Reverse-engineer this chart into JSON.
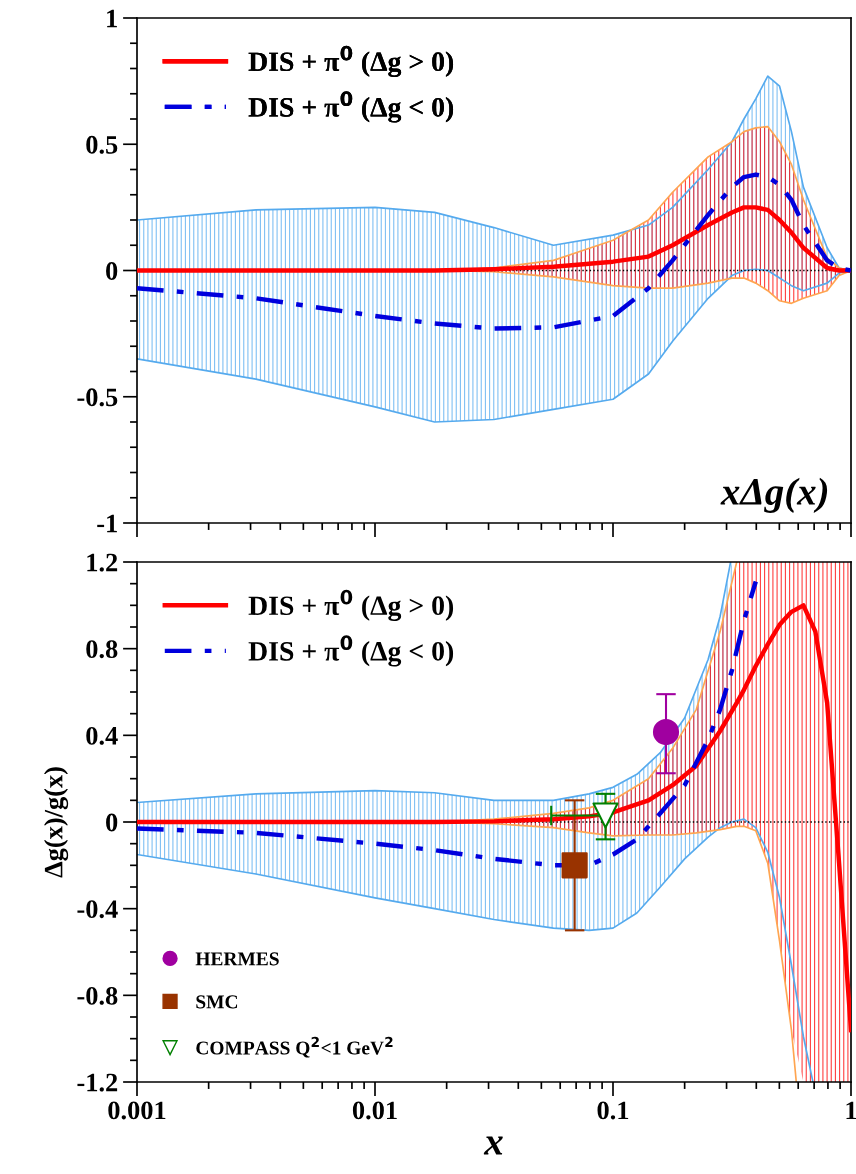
{
  "chart_data": [
    {
      "type": "line",
      "annotations": [
        "xΔg(x)"
      ],
      "xlim": [
        0.001,
        1
      ],
      "xticks": [
        0.001,
        0.01,
        0.1,
        1
      ],
      "ylim": [
        -1,
        1
      ],
      "yticks": [
        -1,
        -0.5,
        0,
        0.5,
        1
      ],
      "log": "x",
      "tick_labels": "y",
      "legend": "top left",
      "grid": false,
      "ref_lines": [
        {
          "axis": "y",
          "value": 0,
          "color": "#000000",
          "line_style": "dotted"
        }
      ],
      "series": [
        {
          "color": "#55aaee",
          "line_style": "solid",
          "x": [
            0.001,
            0.00316,
            0.01,
            0.0178,
            0.0316,
            0.0562,
            0.1,
            0.141,
            0.178,
            0.251,
            0.316,
            0.355,
            0.398,
            0.447,
            0.501,
            0.562,
            0.631,
            0.794,
            0.891,
            1
          ],
          "values": [
            0.2,
            0.24,
            0.25,
            0.23,
            0.17,
            0.1,
            0.14,
            0.18,
            0.25,
            0.4,
            0.51,
            0.6,
            0.68,
            0.77,
            0.73,
            0.55,
            0.33,
            0.09,
            0.01,
            0
          ]
        },
        {
          "color": "#55aaee",
          "line_style": "solid",
          "x": [
            0.001,
            0.00316,
            0.01,
            0.0178,
            0.0316,
            0.0562,
            0.1,
            0.141,
            0.178,
            0.251,
            0.316,
            0.355,
            0.398,
            0.447,
            0.501,
            0.562,
            0.631,
            0.794,
            0.891,
            1
          ],
          "values": [
            -0.35,
            -0.43,
            -0.54,
            -0.6,
            -0.59,
            -0.55,
            -0.51,
            -0.41,
            -0.28,
            -0.11,
            -0.02,
            0,
            0.005,
            0,
            -0.03,
            -0.06,
            -0.08,
            -0.05,
            -0.01,
            0
          ]
        },
        {
          "color": "#ffa550",
          "line_style": "solid",
          "x": [
            0.0178,
            0.0316,
            0.0562,
            0.1,
            0.141,
            0.178,
            0.251,
            0.316,
            0.355,
            0.398,
            0.447,
            0.501,
            0.562,
            0.631,
            0.794,
            0.891,
            1
          ],
          "values": [
            0,
            0.01,
            0.04,
            0.12,
            0.2,
            0.31,
            0.45,
            0.51,
            0.55,
            0.565,
            0.57,
            0.51,
            0.42,
            0.28,
            0.05,
            0.01,
            0
          ]
        },
        {
          "color": "#ffa550",
          "line_style": "solid",
          "x": [
            0.0178,
            0.0316,
            0.0562,
            0.1,
            0.141,
            0.178,
            0.251,
            0.316,
            0.355,
            0.398,
            0.447,
            0.501,
            0.562,
            0.631,
            0.794,
            0.891,
            1
          ],
          "values": [
            0,
            -0.005,
            -0.025,
            -0.06,
            -0.07,
            -0.07,
            -0.05,
            -0.03,
            -0.03,
            -0.05,
            -0.08,
            -0.12,
            -0.13,
            -0.11,
            -0.08,
            -0.02,
            0
          ]
        },
        {
          "name": "DIS + π$^{0}$ (Δg > 0)",
          "color": "#ff0000",
          "line_style": "solid",
          "x": [
            0.001,
            0.00316,
            0.01,
            0.0178,
            0.0316,
            0.0562,
            0.1,
            0.141,
            0.178,
            0.251,
            0.316,
            0.355,
            0.398,
            0.447,
            0.501,
            0.562,
            0.631,
            0.794,
            0.891,
            1
          ],
          "values": [
            0,
            0,
            0,
            0,
            0.005,
            0.015,
            0.035,
            0.055,
            0.1,
            0.18,
            0.23,
            0.25,
            0.25,
            0.24,
            0.2,
            0.15,
            0.09,
            0.01,
            0,
            0
          ],
          "upper": [
            0,
            0,
            0,
            0,
            0.01,
            0.04,
            0.12,
            0.2,
            0.31,
            0.45,
            0.51,
            0.55,
            0.565,
            0.57,
            0.51,
            0.42,
            0.28,
            0.05,
            0.01,
            0
          ],
          "lower": [
            0,
            0,
            0,
            0,
            -0.005,
            -0.025,
            -0.06,
            -0.07,
            -0.07,
            -0.05,
            -0.03,
            -0.03,
            -0.05,
            -0.08,
            -0.12,
            -0.13,
            -0.11,
            -0.08,
            -0.02,
            0
          ]
        },
        {
          "name": "DIS + π$^{0}$ (Δg < 0)",
          "color": "#0000dd",
          "line_style": "dashdot",
          "x": [
            0.001,
            0.00316,
            0.01,
            0.0178,
            0.0316,
            0.0562,
            0.1,
            0.141,
            0.178,
            0.251,
            0.316,
            0.355,
            0.398,
            0.447,
            0.501,
            0.562,
            0.631,
            0.794,
            0.891,
            1
          ],
          "values": [
            -0.07,
            -0.11,
            -0.18,
            -0.21,
            -0.23,
            -0.225,
            -0.18,
            -0.07,
            0.04,
            0.22,
            0.33,
            0.37,
            0.38,
            0.37,
            0.34,
            0.28,
            0.18,
            0.04,
            0.01,
            0
          ],
          "upper": [
            0.2,
            0.24,
            0.25,
            0.23,
            0.17,
            0.1,
            0.14,
            0.18,
            0.25,
            0.4,
            0.51,
            0.6,
            0.68,
            0.77,
            0.73,
            0.55,
            0.33,
            0.09,
            0.01,
            0
          ],
          "lower": [
            -0.35,
            -0.43,
            -0.54,
            -0.6,
            -0.59,
            -0.55,
            -0.51,
            -0.41,
            -0.28,
            -0.11,
            -0.02,
            0,
            0.005,
            0,
            -0.03,
            -0.06,
            -0.08,
            -0.05,
            -0.01,
            0
          ]
        }
      ]
    },
    {
      "type": "line",
      "xlabel": "x",
      "ylabel": "Δg(x)/g(x)",
      "xlim": [
        0.001,
        1
      ],
      "xticks": [
        0.001,
        0.01,
        0.1,
        1
      ],
      "ylim": [
        -1.2,
        1.2
      ],
      "yticks": [
        -1.2,
        -0.8,
        -0.4,
        0,
        0.4,
        0.8,
        1.2
      ],
      "log": "x",
      "legend": "left",
      "grid": false,
      "ref_lines": [
        {
          "axis": "y",
          "value": 0,
          "color": "#000000",
          "line_style": "dotted"
        }
      ],
      "series": [
        {
          "color": "#55aaee",
          "line_style": "solid",
          "x": [
            0.001,
            0.00316,
            0.01,
            0.0178,
            0.0316,
            0.0562,
            0.0794,
            0.1,
            0.126,
            0.158,
            0.2,
            0.251,
            0.282,
            0.312
          ],
          "values": [
            0.09,
            0.13,
            0.145,
            0.135,
            0.1,
            0.1,
            0.13,
            0.16,
            0.22,
            0.32,
            0.48,
            0.75,
            0.95,
            1.2
          ]
        },
        {
          "color": "#55aaee",
          "line_style": "solid",
          "x": [
            0.001,
            0.00316,
            0.01,
            0.0178,
            0.0316,
            0.0562,
            0.0794,
            0.1,
            0.126,
            0.158,
            0.2,
            0.251,
            0.282,
            0.316,
            0.355,
            0.398,
            0.447,
            0.501,
            0.562,
            0.631,
            0.692
          ],
          "values": [
            -0.15,
            -0.24,
            -0.35,
            -0.4,
            -0.45,
            -0.49,
            -0.5,
            -0.49,
            -0.42,
            -0.3,
            -0.17,
            -0.07,
            -0.026,
            0,
            0.013,
            -0.026,
            -0.14,
            -0.35,
            -0.66,
            -0.99,
            -1.2
          ]
        },
        {
          "color": "#ffa550",
          "line_style": "solid",
          "x": [
            0.0178,
            0.0316,
            0.0562,
            0.0794,
            0.1,
            0.141,
            0.178,
            0.224,
            0.282,
            0.331
          ],
          "values": [
            0,
            0.013,
            0.04,
            0.065,
            0.1,
            0.2,
            0.34,
            0.52,
            0.88,
            1.2
          ]
        },
        {
          "color": "#ffa550",
          "line_style": "solid",
          "x": [
            0.0178,
            0.0316,
            0.0562,
            0.0794,
            0.1,
            0.141,
            0.178,
            0.224,
            0.282,
            0.331,
            0.355,
            0.398,
            0.447,
            0.501,
            0.562,
            0.589
          ],
          "values": [
            0,
            -0.008,
            -0.026,
            -0.05,
            -0.064,
            -0.06,
            -0.06,
            -0.05,
            -0.035,
            -0.02,
            -0.02,
            -0.04,
            -0.19,
            -0.55,
            -0.96,
            -1.2
          ]
        },
        {
          "name": "DIS + π$^{0}$ (Δg > 0)",
          "color": "#ff0000",
          "line_style": "solid",
          "x": [
            0.001,
            0.00316,
            0.01,
            0.0178,
            0.0316,
            0.0562,
            0.0794,
            0.1,
            0.141,
            0.178,
            0.224,
            0.282,
            0.331,
            0.355,
            0.398,
            0.447,
            0.501,
            0.562,
            0.631,
            0.708,
            0.794,
            0.891,
            1
          ],
          "values": [
            0,
            0,
            0,
            0,
            0.003,
            0.013,
            0.026,
            0.044,
            0.1,
            0.17,
            0.26,
            0.42,
            0.55,
            0.61,
            0.72,
            0.82,
            0.91,
            0.97,
            1.0,
            0.88,
            0.55,
            -0.19,
            -0.96
          ],
          "upper": [
            0,
            0,
            0,
            0,
            0.013,
            0.04,
            0.065,
            0.1,
            0.2,
            0.34,
            0.52,
            0.88,
            1.2,
            1.2,
            1.2,
            1.2,
            1.2,
            1.2,
            1.2,
            1.2,
            1.2,
            1.2,
            1.2
          ],
          "lower": [
            0,
            0,
            0,
            0,
            -0.008,
            -0.026,
            -0.05,
            -0.064,
            -0.06,
            -0.06,
            -0.05,
            -0.035,
            -0.02,
            -0.02,
            -0.04,
            -0.19,
            -0.55,
            -0.96,
            -1.2,
            -1.2,
            -1.2,
            -1.2,
            -1.2
          ]
        },
        {
          "name": "DIS + π$^{0}$ (Δg < 0)",
          "color": "#0000dd",
          "line_style": "dashdot",
          "x": [
            0.001,
            0.00316,
            0.01,
            0.0178,
            0.0316,
            0.0562,
            0.0794,
            0.1,
            0.126,
            0.158,
            0.2,
            0.251,
            0.282,
            0.316,
            0.355,
            0.398
          ],
          "values": [
            -0.03,
            -0.05,
            -0.1,
            -0.13,
            -0.17,
            -0.2,
            -0.2,
            -0.15,
            -0.08,
            0.04,
            0.17,
            0.38,
            0.52,
            0.7,
            0.93,
            1.11
          ],
          "upper": [
            0.09,
            0.13,
            0.145,
            0.135,
            0.1,
            0.1,
            0.13,
            0.16,
            0.22,
            0.32,
            0.48,
            0.75,
            0.95,
            1.2,
            null,
            null
          ],
          "lower": [
            -0.15,
            -0.24,
            -0.35,
            -0.4,
            -0.45,
            -0.49,
            -0.5,
            -0.49,
            -0.42,
            -0.3,
            -0.17,
            -0.07,
            -0.026,
            0,
            null,
            null
          ]
        },
        {
          "type": "scatter",
          "name": "HERMES",
          "color": "#a000a0",
          "marker": "circle",
          "x": [
            0.167
          ],
          "values": [
            0.415
          ],
          "errors": [
            [
              0.225,
              0.59
            ]
          ]
        },
        {
          "type": "scatter",
          "name": "SMC",
          "color": "#993300",
          "marker": "square",
          "x": [
            0.069
          ],
          "values": [
            -0.2
          ],
          "errors": [
            [
              -0.5,
              0.1
            ]
          ]
        },
        {
          "type": "scatter",
          "name": "COMPASS Q$^{2}$<1 GeV$^{2}$",
          "color": "#008000",
          "marker": "triangle",
          "x": [
            0.093
          ],
          "values": [
            0.03
          ],
          "errors": [
            [
              -0.08,
              0.13
            ]
          ],
          "xerrors": [
            [
              0.055,
              0.093
            ]
          ]
        }
      ]
    }
  ]
}
